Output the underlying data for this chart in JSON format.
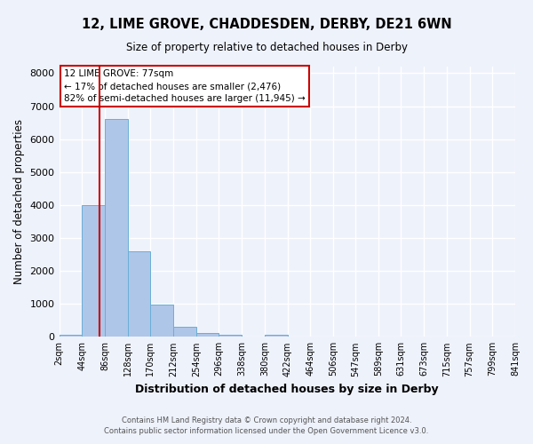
{
  "title": "12, LIME GROVE, CHADDESDEN, DERBY, DE21 6WN",
  "subtitle": "Size of property relative to detached houses in Derby",
  "xlabel": "Distribution of detached houses by size in Derby",
  "ylabel": "Number of detached properties",
  "bin_edges": [
    2,
    44,
    86,
    128,
    170,
    212,
    254,
    296,
    338,
    380,
    422,
    464,
    506,
    547,
    589,
    631,
    673,
    715,
    757,
    799,
    841
  ],
  "bar_heights": [
    55,
    4000,
    6600,
    2600,
    970,
    310,
    110,
    60,
    0,
    65,
    0,
    0,
    0,
    0,
    0,
    0,
    0,
    0,
    0,
    0
  ],
  "bar_color": "#aec6e8",
  "bar_edge_color": "#6aaed6",
  "property_line_x": 77,
  "property_line_color": "#cc0000",
  "ylim": [
    0,
    8200
  ],
  "yticks": [
    0,
    1000,
    2000,
    3000,
    4000,
    5000,
    6000,
    7000,
    8000
  ],
  "annotation_text_line1": "12 LIME GROVE: 77sqm",
  "annotation_text_line2": "← 17% of detached houses are smaller (2,476)",
  "annotation_text_line3": "82% of semi-detached houses are larger (11,945) →",
  "annotation_box_color": "#ffffff",
  "annotation_box_edge_color": "#cc0000",
  "footer_line1": "Contains HM Land Registry data © Crown copyright and database right 2024.",
  "footer_line2": "Contains public sector information licensed under the Open Government Licence v3.0.",
  "bg_color": "#eef2fb",
  "grid_color": "#ffffff",
  "tick_labels": [
    "2sqm",
    "44sqm",
    "86sqm",
    "128sqm",
    "170sqm",
    "212sqm",
    "254sqm",
    "296sqm",
    "338sqm",
    "380sqm",
    "422sqm",
    "464sqm",
    "506sqm",
    "547sqm",
    "589sqm",
    "631sqm",
    "673sqm",
    "715sqm",
    "757sqm",
    "799sqm",
    "841sqm"
  ]
}
